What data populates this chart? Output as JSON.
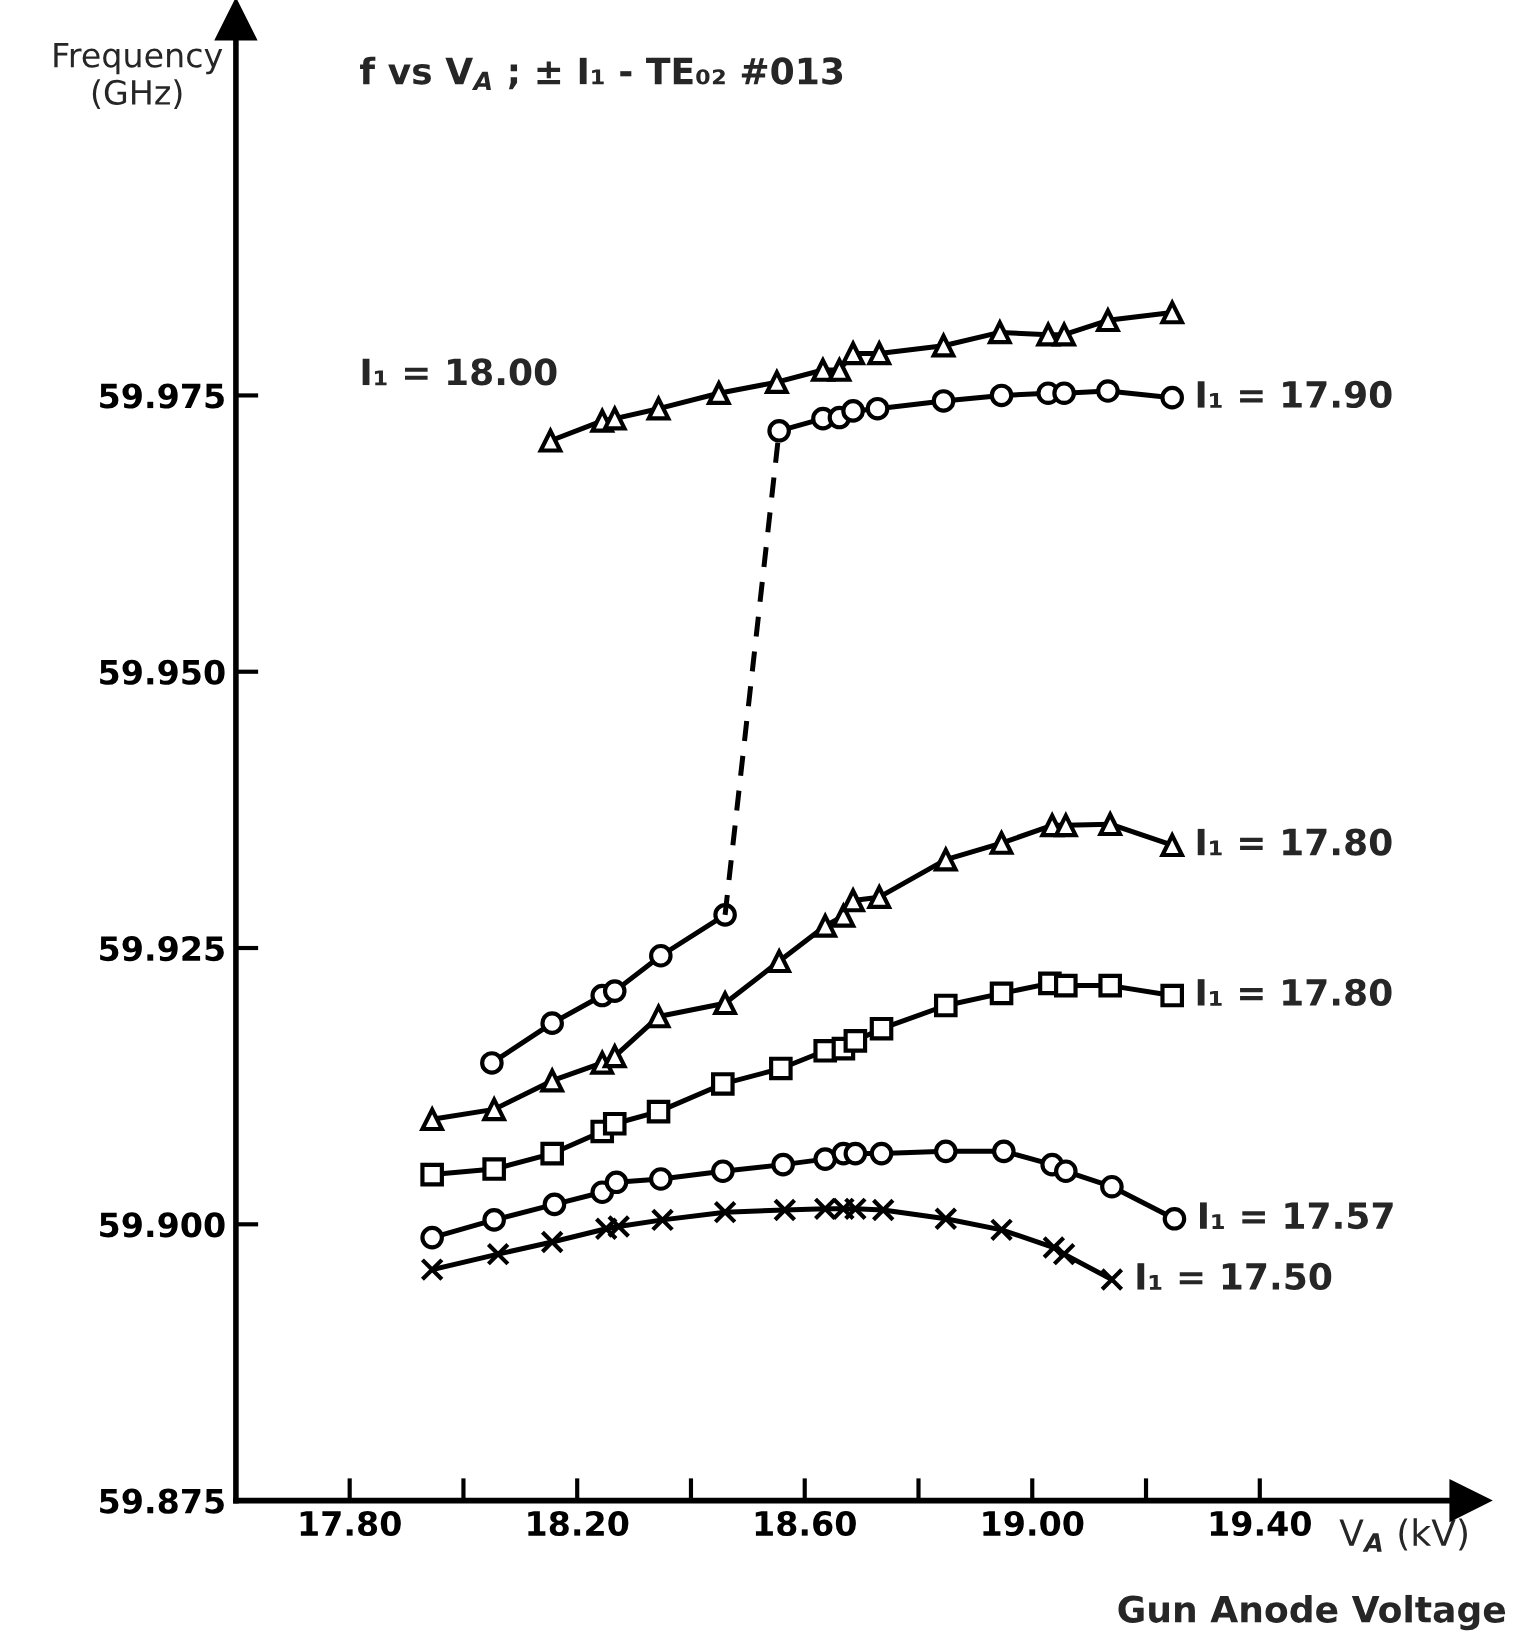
{
  "chart_data": {
    "type": "line",
    "title": "f vs V$_{A}$ ; ± I₁ - TE₀₂ #013",
    "xlabel": "V$_{A}$ (kV)",
    "ylabel": "Frequency\n(GHz)",
    "xlim": [
      17.6,
      19.77
    ],
    "ylim": [
      59.875,
      60.009
    ],
    "xticks": [
      {
        "value": 17.8,
        "label": "17.80"
      },
      {
        "value": 18.0,
        "label": null
      },
      {
        "value": 18.2,
        "label": "18.20"
      },
      {
        "value": 18.4,
        "label": null
      },
      {
        "value": 18.6,
        "label": "18.60"
      },
      {
        "value": 18.8,
        "label": null
      },
      {
        "value": 19.0,
        "label": "19.00"
      },
      {
        "value": 19.2,
        "label": null
      },
      {
        "value": 19.4,
        "label": "19.40"
      }
    ],
    "yticks": [
      {
        "value": 59.875,
        "label": "59.875"
      },
      {
        "value": 59.9,
        "label": "59.900"
      },
      {
        "value": 59.925,
        "label": "59.925"
      },
      {
        "value": 59.95,
        "label": "59.950"
      },
      {
        "value": 59.975,
        "label": "59.975"
      }
    ],
    "grid": false,
    "legend": false,
    "line_style": "solid",
    "annotations": [
      "I₁ = 18.00",
      "Gun Anode Voltage"
    ],
    "series": [
      {
        "color": "#000000",
        "marker": "triangle",
        "x": [
          18.153,
          18.244,
          18.266,
          18.343,
          18.449,
          18.551,
          18.632,
          18.661,
          18.685,
          18.731,
          18.844,
          18.943,
          19.028,
          19.056,
          19.133,
          19.246
        ],
        "values": [
          59.9709,
          59.9727,
          59.9729,
          59.9738,
          59.9752,
          59.9762,
          59.9773,
          59.9773,
          59.9788,
          59.9788,
          59.9795,
          59.9807,
          59.9805,
          59.9805,
          59.9818,
          59.9825
        ]
      },
      {
        "color": "#000000",
        "marker": "circle",
        "x": [
          18.05,
          18.156,
          18.244,
          18.266,
          18.347,
          18.46
        ],
        "values": [
          59.9146,
          59.9182,
          59.9207,
          59.9211,
          59.9243,
          59.928
        ]
      },
      {
        "color": "#000000",
        "line_style": "dashed",
        "x": [
          18.46,
          18.555
        ],
        "values": [
          59.928,
          59.9718
        ]
      },
      {
        "name": "I₁ = 17.90",
        "color": "#000000",
        "marker": "circle",
        "x": [
          18.555,
          18.632,
          18.661,
          18.685,
          18.728,
          18.844,
          18.946,
          19.028,
          19.056,
          19.133,
          19.246
        ],
        "values": [
          59.9718,
          59.9729,
          59.973,
          59.9736,
          59.9738,
          59.9745,
          59.975,
          59.9752,
          59.9752,
          59.9754,
          59.9748
        ]
      },
      {
        "name": "I₁ = 17.80",
        "color": "#000000",
        "marker": "triangle",
        "x": [
          17.945,
          18.054,
          18.156,
          18.244,
          18.266,
          18.343,
          18.46,
          18.555,
          18.636,
          18.668,
          18.685,
          18.731,
          18.848,
          18.946,
          19.035,
          19.059,
          19.137,
          19.246
        ],
        "values": [
          59.9095,
          59.9104,
          59.913,
          59.9146,
          59.9152,
          59.9188,
          59.92,
          59.9238,
          59.927,
          59.9279,
          59.9293,
          59.9296,
          59.933,
          59.9345,
          59.9361,
          59.9361,
          59.9362,
          59.9343
        ]
      },
      {
        "name": "I₁ = 17.80",
        "color": "#000000",
        "marker": "square",
        "x": [
          17.945,
          18.054,
          18.156,
          18.244,
          18.266,
          18.343,
          18.456,
          18.558,
          18.636,
          18.668,
          18.689,
          18.735,
          18.848,
          18.946,
          19.031,
          19.059,
          19.137,
          19.246
        ],
        "values": [
          59.9045,
          59.905,
          59.9064,
          59.9084,
          59.9091,
          59.9102,
          59.9127,
          59.9141,
          59.9157,
          59.9159,
          59.9166,
          59.9177,
          59.9198,
          59.9209,
          59.9218,
          59.9216,
          59.9216,
          59.9207
        ]
      },
      {
        "name": "I₁ = 17.57",
        "color": "#000000",
        "marker": "circle",
        "x": [
          17.945,
          18.054,
          18.16,
          18.244,
          18.269,
          18.347,
          18.456,
          18.562,
          18.636,
          18.668,
          18.689,
          18.735,
          18.848,
          18.95,
          19.035,
          19.059,
          19.14,
          19.25
        ],
        "values": [
          59.8988,
          59.9004,
          59.9018,
          59.9029,
          59.9038,
          59.9041,
          59.9048,
          59.9054,
          59.9059,
          59.9064,
          59.9064,
          59.9064,
          59.9066,
          59.9066,
          59.9054,
          59.9048,
          59.9034,
          59.9005
        ]
      },
      {
        "name": "I₁ = 17.50",
        "color": "#000000",
        "marker": "cross",
        "x": [
          17.945,
          18.061,
          18.156,
          18.251,
          18.273,
          18.35,
          18.46,
          18.565,
          18.636,
          18.668,
          18.689,
          18.738,
          18.848,
          18.946,
          19.038,
          19.056,
          19.14
        ],
        "values": [
          59.8959,
          59.8973,
          59.8984,
          59.8996,
          59.8998,
          59.9004,
          59.9011,
          59.9013,
          59.9014,
          59.9014,
          59.9014,
          59.9013,
          59.9005,
          59.8995,
          59.8979,
          59.8973,
          59.895
        ]
      }
    ]
  }
}
